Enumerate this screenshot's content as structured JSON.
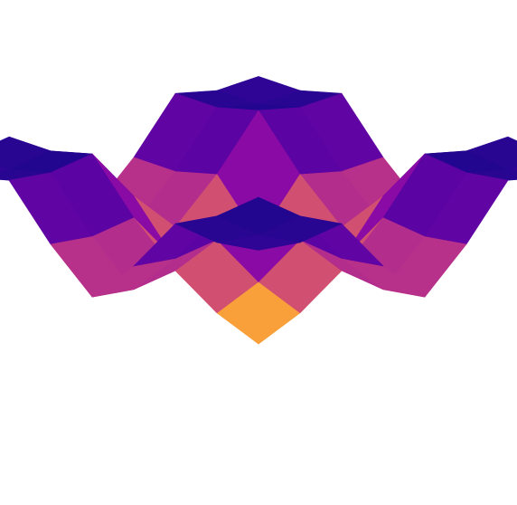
{
  "chart_data": {
    "type": "surface",
    "colormap": "plasma_r",
    "x": [
      -5,
      -3.75,
      -2.5,
      -1.25,
      0,
      1.25,
      2.5,
      3.75,
      5
    ],
    "y": [
      -5,
      -3.75,
      -2.5,
      -1.25,
      0,
      1.25,
      2.5,
      3.75,
      5
    ],
    "z": [
      [
        50,
        49.1,
        51.3,
        36.6,
        25,
        36.6,
        51.3,
        49.1,
        50
      ],
      [
        49.1,
        48.2,
        50.4,
        35.7,
        24.1,
        35.7,
        50.4,
        48.2,
        49.1
      ],
      [
        51.3,
        50.4,
        52.6,
        37.9,
        26.3,
        37.9,
        52.6,
        50.4,
        51.3
      ],
      [
        36.6,
        35.7,
        37.9,
        23.2,
        11.6,
        23.2,
        37.9,
        35.7,
        36.6
      ],
      [
        25,
        24.1,
        26.3,
        11.6,
        0,
        11.6,
        26.3,
        24.1,
        25
      ],
      [
        36.6,
        35.7,
        37.9,
        23.2,
        11.6,
        23.2,
        37.9,
        35.7,
        36.6
      ],
      [
        51.3,
        50.4,
        52.6,
        37.9,
        26.3,
        37.9,
        52.6,
        50.4,
        51.3
      ],
      [
        49.1,
        48.2,
        50.4,
        35.7,
        24.1,
        35.7,
        50.4,
        48.2,
        49.1
      ],
      [
        50,
        49.1,
        51.3,
        36.6,
        25,
        36.6,
        51.3,
        49.1,
        50
      ]
    ]
  }
}
